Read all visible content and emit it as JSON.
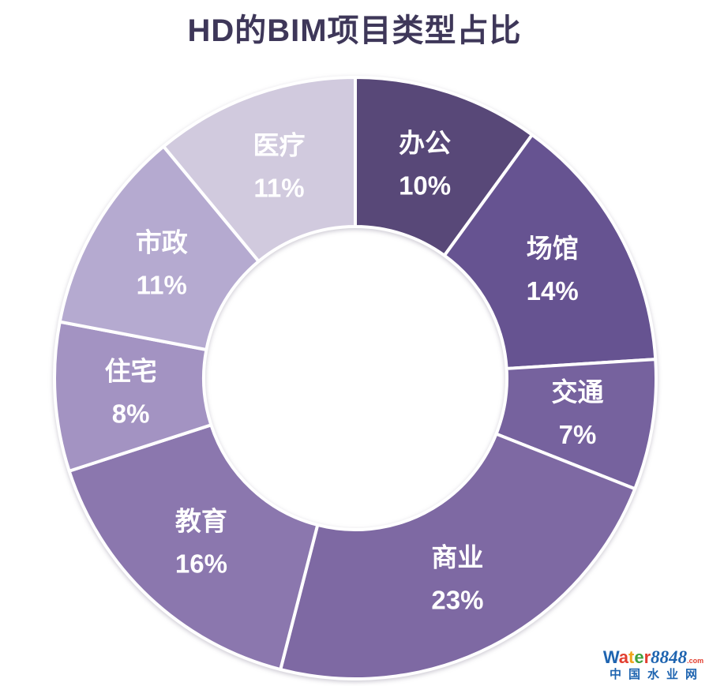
{
  "title": "HD的BIM项目类型占比",
  "title_color": "#3e3759",
  "chart_data": {
    "type": "pie",
    "subtype": "donut",
    "title": "HD的BIM项目类型占比",
    "categories": [
      "办公",
      "场馆",
      "交通",
      "商业",
      "教育",
      "住宅",
      "市政",
      "医疗"
    ],
    "values": [
      10,
      14,
      7,
      23,
      16,
      8,
      11,
      11
    ],
    "percent_labels": [
      "10%",
      "14%",
      "7%",
      "23%",
      "16%",
      "8%",
      "11%",
      "11%"
    ],
    "colors": [
      "#584878",
      "#665391",
      "#76629e",
      "#7e69a3",
      "#8b77ae",
      "#a393c2",
      "#b5aad0",
      "#d1cade"
    ],
    "start_angle_deg": 0,
    "direction": "clockwise",
    "inner_radius_ratio": 0.5,
    "slice_border_color": "#ffffff",
    "label_color": "#ffffff",
    "legend": "none",
    "labels_inside_slices": true
  },
  "watermark": {
    "brand_letters": [
      {
        "text": "W",
        "color": "#1e64b0"
      },
      {
        "text": "a",
        "color": "#e23e2f"
      },
      {
        "text": "t",
        "color": "#f0a31c"
      },
      {
        "text": "e",
        "color": "#3ea13d"
      },
      {
        "text": "r",
        "color": "#e23e2f"
      }
    ],
    "brand_number": "8848",
    "brand_number_color": "#1e64b0",
    "domain": ".com",
    "domain_color": "#e23e2f",
    "tagline": "中国水业网",
    "tagline_color": "#1e64b0"
  }
}
